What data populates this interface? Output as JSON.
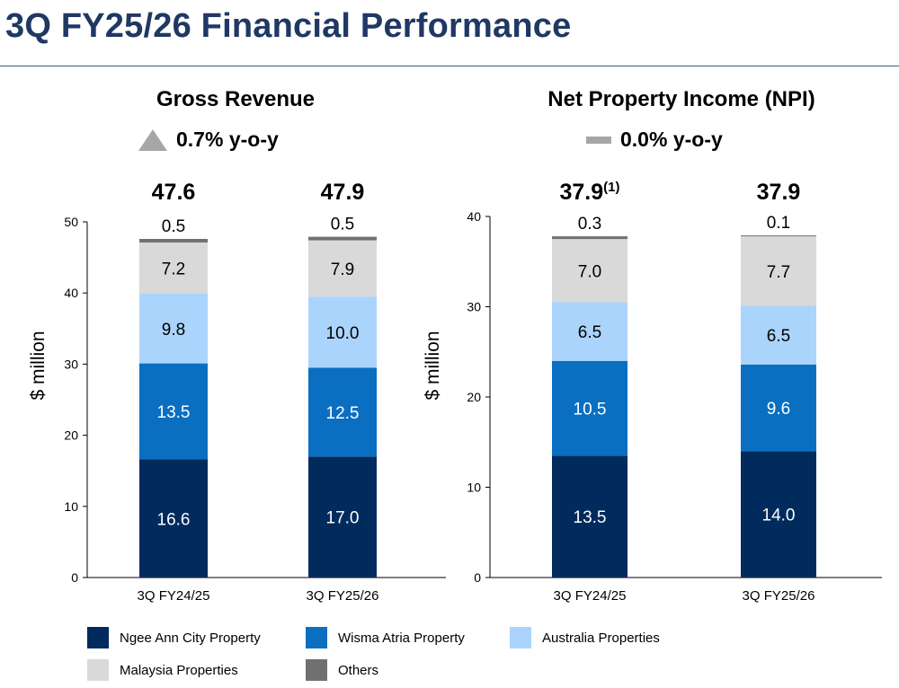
{
  "page": {
    "title": "3Q FY25/26 Financial Performance"
  },
  "legend": [
    {
      "label": "Ngee Ann City Property",
      "color": "#002b5c"
    },
    {
      "label": "Wisma Atria Property",
      "color": "#0a6fc1"
    },
    {
      "label": "Australia Properties",
      "color": "#aad4fb"
    },
    {
      "label": "Malaysia Properties",
      "color": "#d9d9d9"
    },
    {
      "label": "Others",
      "color": "#707070"
    }
  ],
  "chart_data": [
    {
      "type": "bar",
      "stacked": true,
      "title": "Gross Revenue",
      "change": {
        "value": "0.7% y-o-y",
        "direction": "up"
      },
      "ylabel": "$ million",
      "ylim": [
        0,
        50
      ],
      "yticks": [
        0,
        10,
        20,
        30,
        40,
        50
      ],
      "categories": [
        "3Q FY24/25",
        "3Q FY25/26"
      ],
      "totals": [
        "47.6",
        "47.9"
      ],
      "total_notes": [
        "",
        ""
      ],
      "series": [
        {
          "name": "Ngee Ann City Property",
          "values": [
            16.6,
            17.0
          ],
          "labels": [
            "16.6",
            "17.0"
          ]
        },
        {
          "name": "Wisma Atria Property",
          "values": [
            13.5,
            12.5
          ],
          "labels": [
            "13.5",
            "12.5"
          ]
        },
        {
          "name": "Australia Properties",
          "values": [
            9.8,
            10.0
          ],
          "labels": [
            "9.8",
            "10.0"
          ]
        },
        {
          "name": "Malaysia Properties",
          "values": [
            7.2,
            7.9
          ],
          "labels": [
            "7.2",
            "7.9"
          ]
        },
        {
          "name": "Others",
          "values": [
            0.5,
            0.5
          ],
          "labels": [
            "0.5",
            "0.5"
          ]
        }
      ]
    },
    {
      "type": "bar",
      "stacked": true,
      "title": "Net Property Income (NPI)",
      "change": {
        "value": "0.0% y-o-y",
        "direction": "flat"
      },
      "ylabel": "$ million",
      "ylim": [
        0,
        40
      ],
      "yticks": [
        0,
        10,
        20,
        30,
        40
      ],
      "categories": [
        "3Q FY24/25",
        "3Q FY25/26"
      ],
      "totals": [
        "37.9",
        "37.9"
      ],
      "total_notes": [
        "(1)",
        ""
      ],
      "series": [
        {
          "name": "Ngee Ann City Property",
          "values": [
            13.5,
            14.0
          ],
          "labels": [
            "13.5",
            "14.0"
          ]
        },
        {
          "name": "Wisma Atria Property",
          "values": [
            10.5,
            9.6
          ],
          "labels": [
            "10.5",
            "9.6"
          ]
        },
        {
          "name": "Australia Properties",
          "values": [
            6.5,
            6.5
          ],
          "labels": [
            "6.5",
            "6.5"
          ]
        },
        {
          "name": "Malaysia Properties",
          "values": [
            7.0,
            7.7
          ],
          "labels": [
            "7.0",
            "7.7"
          ]
        },
        {
          "name": "Others",
          "values": [
            0.3,
            0.1
          ],
          "labels": [
            "0.3",
            "0.1"
          ]
        }
      ]
    }
  ]
}
